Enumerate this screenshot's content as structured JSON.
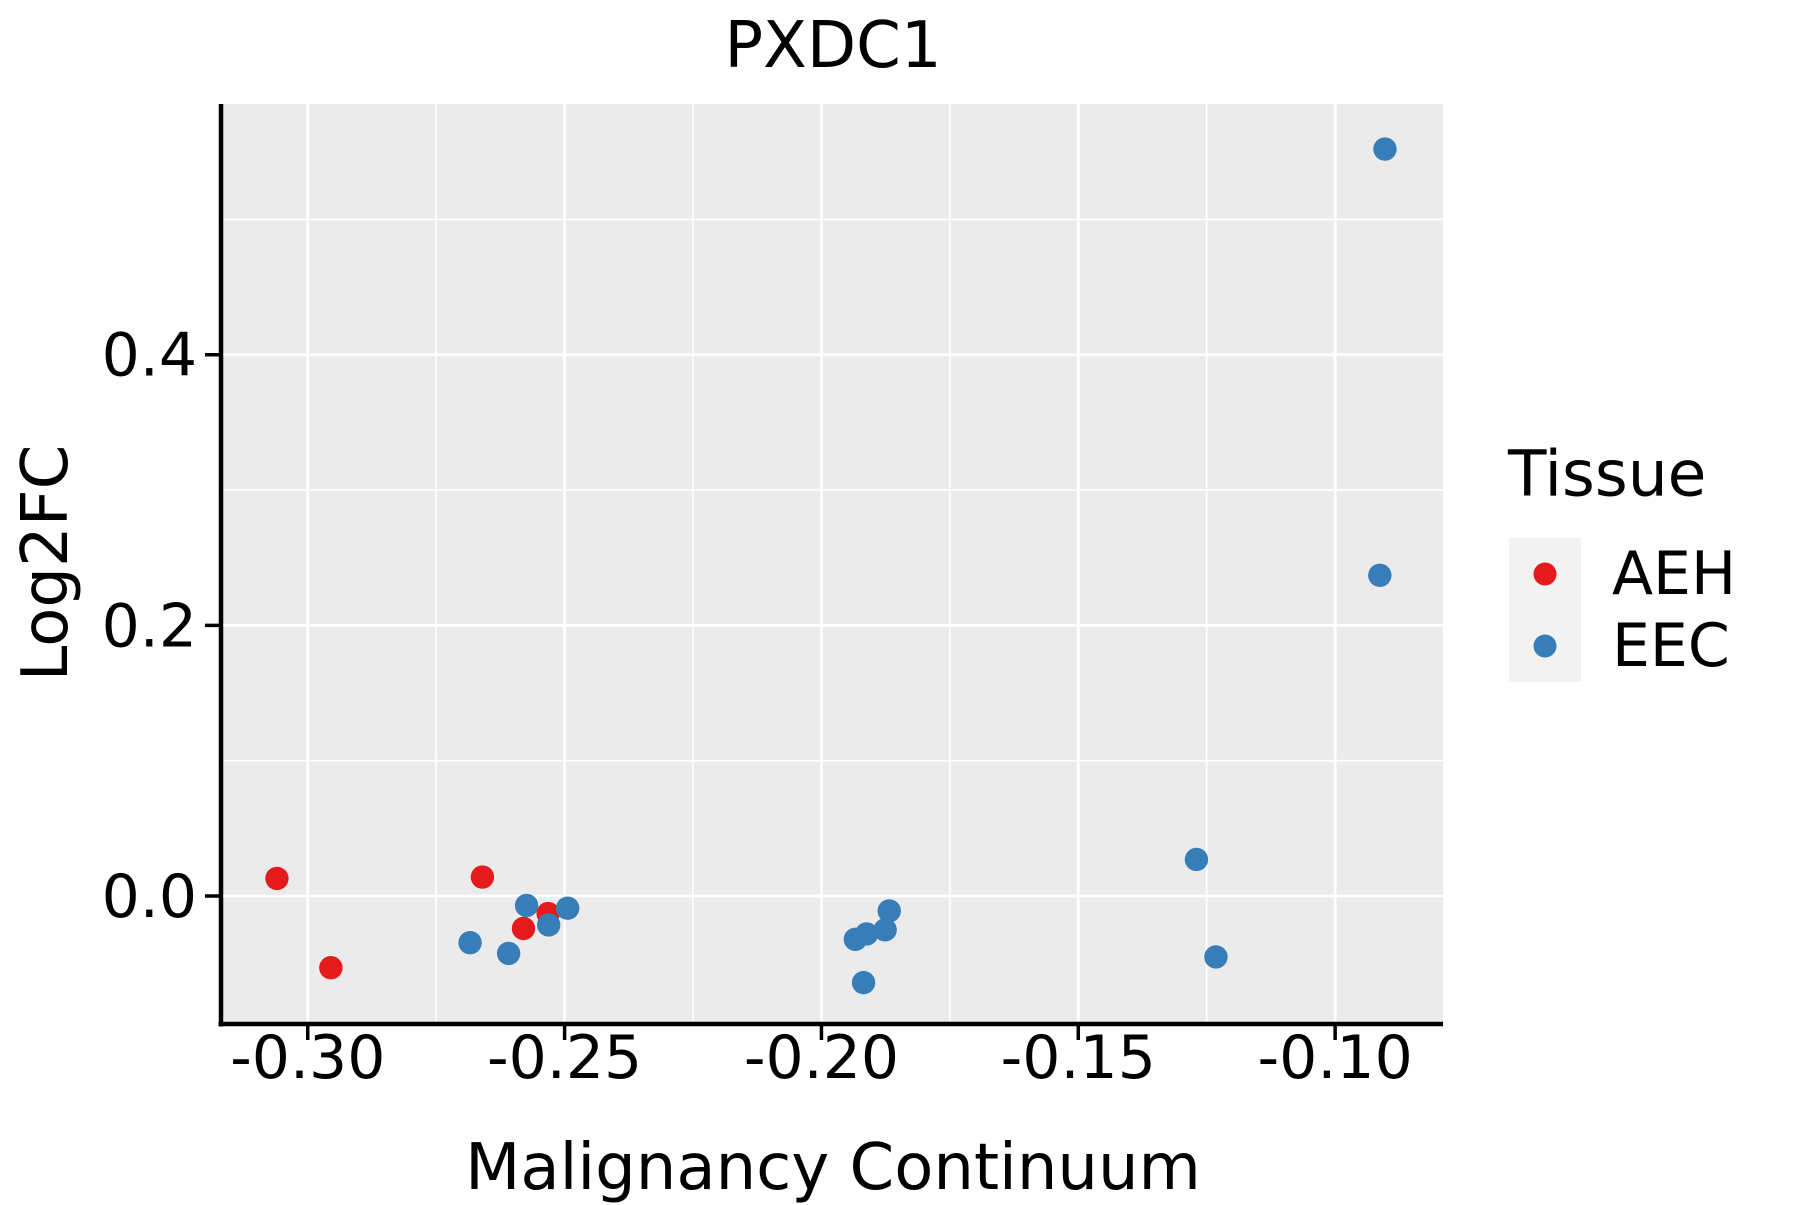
{
  "title": "PXDC1",
  "axes": {
    "x_label": "Malignancy Continuum",
    "y_label": "Log2FC"
  },
  "legend": {
    "title": "Tissue",
    "position": "right",
    "items": [
      {
        "label": "AEH",
        "color": "#E41A1C"
      },
      {
        "label": "EEC",
        "color": "#377EB8"
      }
    ]
  },
  "panel": {
    "background": "#EBEBEB",
    "grid_color": "#FFFFFF",
    "spine_color": "#000000",
    "tick_color": "#000000",
    "legend_key_background": "#F2F2F2"
  },
  "chart_data": {
    "type": "scatter",
    "title": "PXDC1",
    "xlabel": "Malignancy Continuum",
    "ylabel": "Log2FC",
    "xlim": [
      -0.3165,
      -0.079
    ],
    "ylim": [
      -0.0931,
      0.5853
    ],
    "x_ticks": [
      -0.3,
      -0.25,
      -0.2,
      -0.15,
      -0.1
    ],
    "x_tick_labels": [
      "-0.30",
      "-0.25",
      "-0.20",
      "-0.15",
      "-0.10"
    ],
    "x_minor_ticks": [
      -0.275,
      -0.225,
      -0.175,
      -0.125
    ],
    "y_ticks": [
      0.0,
      0.2,
      0.4
    ],
    "y_tick_labels": [
      "0.0",
      "0.2",
      "0.4"
    ],
    "y_minor_ticks": [
      0.1,
      0.3,
      0.5
    ],
    "grid": true,
    "legend_position": "right",
    "point_radius_px": 11.7,
    "series": [
      {
        "name": "AEH",
        "color": "#E41A1C",
        "points": [
          [
            -0.306,
            0.013
          ],
          [
            -0.2955,
            -0.053
          ],
          [
            -0.266,
            0.014
          ],
          [
            -0.258,
            -0.024
          ],
          [
            -0.2532,
            -0.013
          ]
        ]
      },
      {
        "name": "EEC",
        "color": "#377EB8",
        "points": [
          [
            -0.2684,
            -0.0345
          ],
          [
            -0.2609,
            -0.0424
          ],
          [
            -0.2574,
            -0.007
          ],
          [
            -0.2531,
            -0.0214
          ],
          [
            -0.2494,
            -0.009
          ],
          [
            -0.1934,
            -0.032
          ],
          [
            -0.1918,
            -0.064
          ],
          [
            -0.1912,
            -0.028
          ],
          [
            -0.1876,
            -0.025
          ],
          [
            -0.1868,
            -0.011
          ],
          [
            -0.127,
            0.027
          ],
          [
            -0.1232,
            -0.045
          ],
          [
            -0.0913,
            0.237
          ],
          [
            -0.0903,
            0.552
          ]
        ]
      }
    ]
  }
}
